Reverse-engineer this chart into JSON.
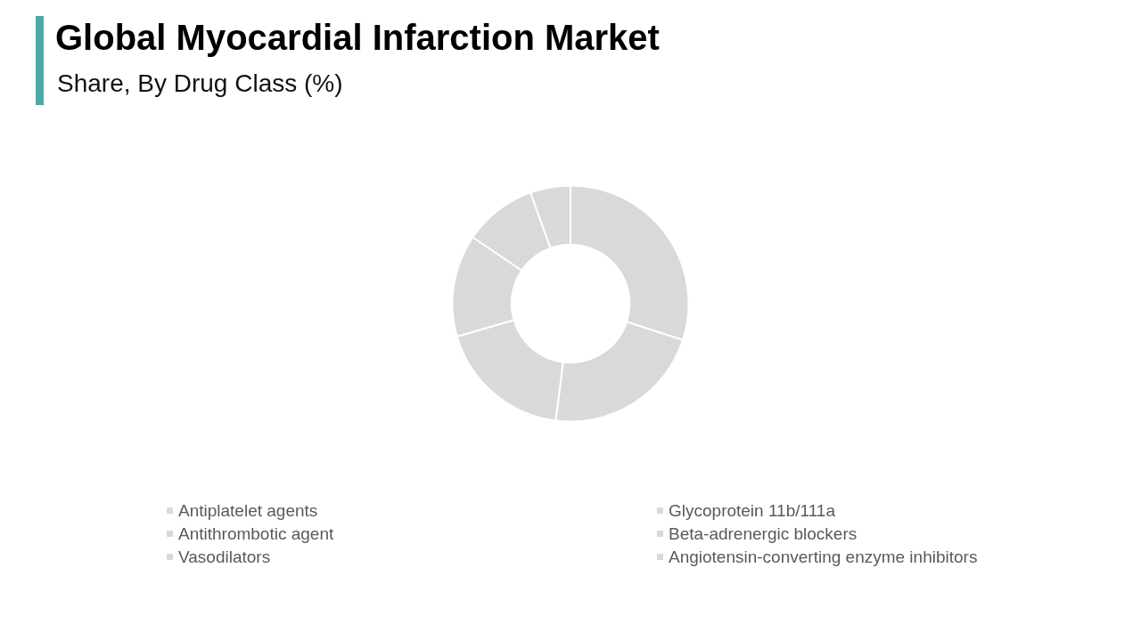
{
  "chart_data": {
    "type": "donut",
    "title": "Global Myocardial Infarction Market",
    "subtitle": "Share, By Drug Class (%)",
    "categories": [
      "Antiplatelet agents",
      "Glycoprotein 11b/111a",
      "Antithrombotic agent",
      "Beta-adrenergic blockers",
      "Vasodilators",
      "Angiotensin-converting enzyme inhibitors"
    ],
    "values": [
      30,
      22,
      18.5,
      14,
      10,
      5.5
    ],
    "colors": [
      "#d9d9d9",
      "#d9d9d9",
      "#d9d9d9",
      "#d9d9d9",
      "#d9d9d9",
      "#d9d9d9"
    ],
    "legend": "bottom"
  }
}
